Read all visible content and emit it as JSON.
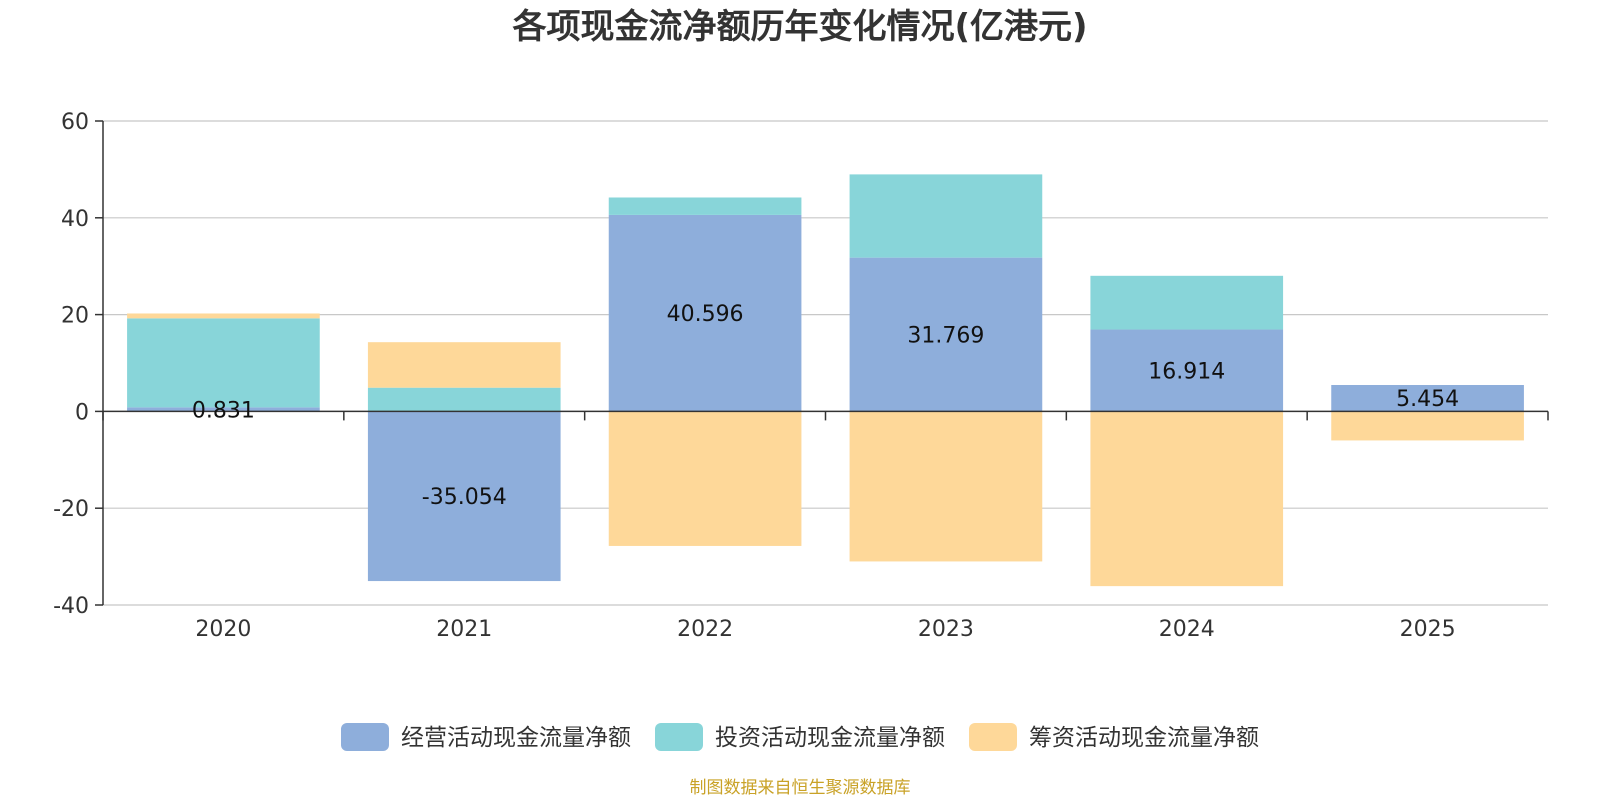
{
  "chart_data": {
    "type": "bar",
    "stacked": true,
    "title": "各项现金流净额历年变化情况(亿港元)",
    "categories": [
      "2020",
      "2021",
      "2022",
      "2023",
      "2024",
      "2025"
    ],
    "ylim": [
      -40,
      60
    ],
    "yticks": [
      60,
      40,
      20,
      0,
      -20,
      -40
    ],
    "grid": true,
    "legend_position": "bottom",
    "series": [
      {
        "name": "经营活动现金流量净额",
        "color": "#8eaedb",
        "values": [
          0.831,
          -35.054,
          40.596,
          31.769,
          16.914,
          5.454
        ],
        "labels": [
          "0.831",
          "-35.054",
          "40.596",
          "31.769",
          "16.914",
          "5.454"
        ]
      },
      {
        "name": "投资活动现金流量净额",
        "color": "#88d5d9",
        "values": [
          18.4,
          4.9,
          3.6,
          17.2,
          11.1,
          0.0
        ]
      },
      {
        "name": "筹资活动现金流量净额",
        "color": "#fed899",
        "values": [
          1.0,
          9.4,
          -27.8,
          -31.0,
          -36.1,
          -6.0
        ]
      }
    ]
  },
  "source_note": "制图数据来自恒生聚源数据库"
}
